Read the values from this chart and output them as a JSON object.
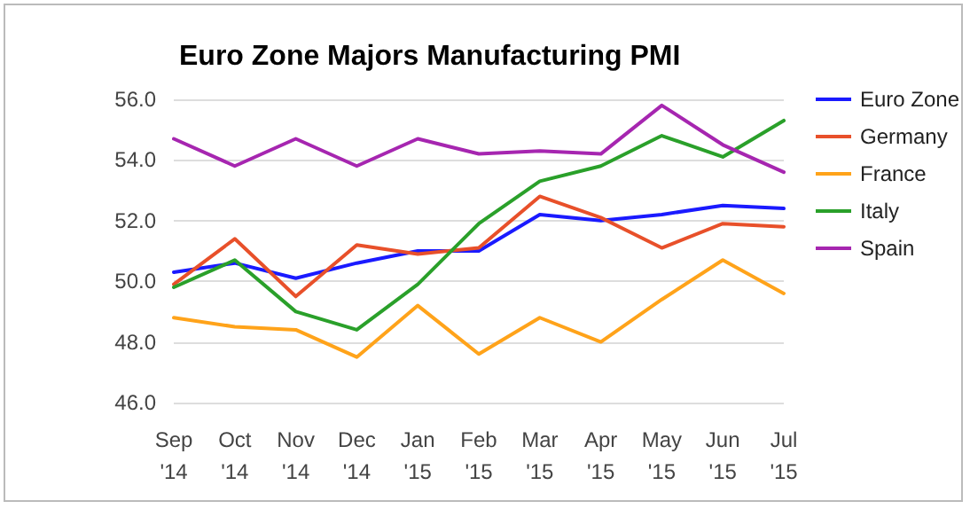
{
  "chart_data": {
    "type": "line",
    "title": "Euro Zone Majors Manufacturing PMI",
    "categories": [
      "Sep '14",
      "Oct '14",
      "Nov '14",
      "Dec '14",
      "Jan '15",
      "Feb '15",
      "Mar '15",
      "Apr '15",
      "May '15",
      "Jun '15",
      "Jul '15"
    ],
    "series": [
      {
        "name": "Euro Zone",
        "color": "#1a1aff",
        "values": [
          50.3,
          50.6,
          50.1,
          50.6,
          51.0,
          51.0,
          52.2,
          52.0,
          52.2,
          52.5,
          52.4
        ]
      },
      {
        "name": "Germany",
        "color": "#e8502a",
        "values": [
          49.9,
          51.4,
          49.5,
          51.2,
          50.9,
          51.1,
          52.8,
          52.1,
          51.1,
          51.9,
          51.8
        ]
      },
      {
        "name": "France",
        "color": "#ffa31a",
        "values": [
          48.8,
          48.5,
          48.4,
          47.5,
          49.2,
          47.6,
          48.8,
          48.0,
          49.4,
          50.7,
          49.6
        ]
      },
      {
        "name": "Italy",
        "color": "#2aa02a",
        "values": [
          49.8,
          50.7,
          49.0,
          48.4,
          49.9,
          51.9,
          53.3,
          53.8,
          54.8,
          54.1,
          55.3
        ]
      },
      {
        "name": "Spain",
        "color": "#a626b0",
        "values": [
          54.7,
          53.8,
          54.7,
          53.8,
          54.7,
          54.2,
          54.3,
          54.2,
          55.8,
          54.5,
          53.6
        ]
      }
    ],
    "ylim": [
      46,
      56
    ],
    "yticks": [
      {
        "value": 46,
        "label": "46.0"
      },
      {
        "value": 48,
        "label": "48.0"
      },
      {
        "value": 50,
        "label": "50.0"
      },
      {
        "value": 52,
        "label": "52.0"
      },
      {
        "value": 54,
        "label": "54.0"
      },
      {
        "value": 56,
        "label": "56.0"
      }
    ],
    "grid": "y",
    "legend": "right",
    "marker": "none",
    "line_style": "solid"
  }
}
